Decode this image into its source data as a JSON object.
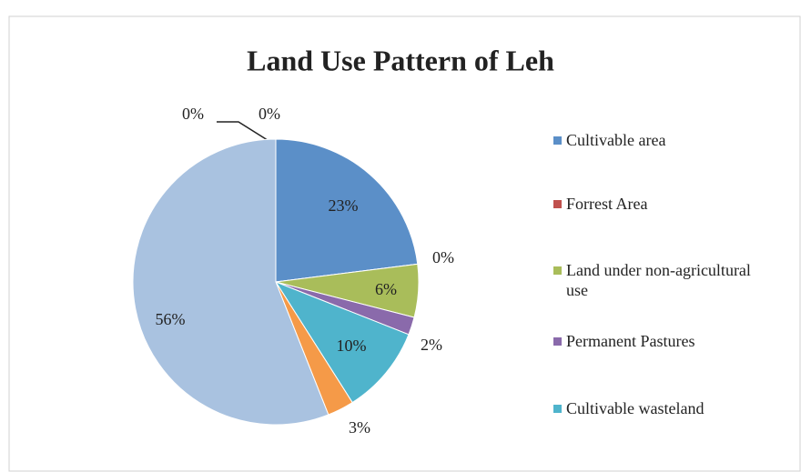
{
  "chart_data": {
    "type": "pie",
    "title": "Land Use Pattern of Leh",
    "categories": [
      "Cultivable area",
      "Forrest Area",
      "Land under non-agricultural use",
      "Permanent Pastures",
      "Cultivable wasteland",
      null,
      null,
      null,
      null
    ],
    "values": [
      23,
      0,
      6,
      2,
      10,
      3,
      56,
      0,
      0
    ],
    "value_labels": [
      "23%",
      "0%",
      "6%",
      "2%",
      "10%",
      "3%",
      "56%",
      "0%",
      "0%"
    ],
    "colors": [
      "#5b8fc8",
      "#c0504d",
      "#a9bd5a",
      "#8a6aab",
      "#4fb4cc",
      "#f59a48",
      "#a9c2e0",
      "#d8c6a4",
      "#c9d6e8"
    ]
  }
}
